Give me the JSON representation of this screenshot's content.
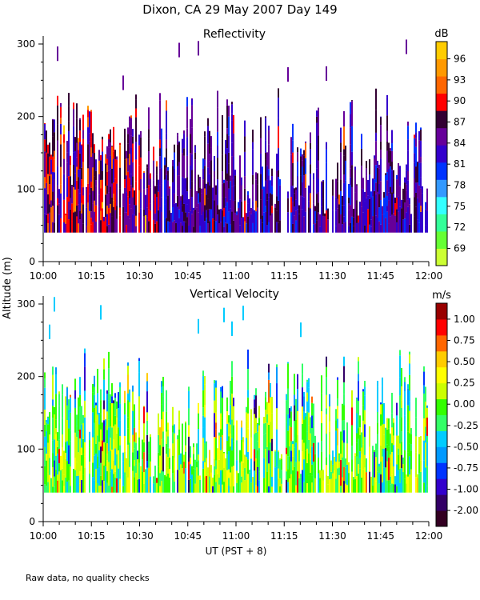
{
  "figure": {
    "title": "Dixon, CA 29 May 2007  Day 149",
    "footnote": "Raw data, no quality checks",
    "ylabel": "Altitude (m)",
    "xlabel": "UT  (PST + 8)"
  },
  "chart_data": [
    {
      "type": "heatmap",
      "title": "Reflectivity",
      "xlabel": "UT  (PST + 8)",
      "ylabel": "Altitude (m)",
      "xlim": [
        0,
        120
      ],
      "ylim": [
        0,
        300
      ],
      "x_ticks": [
        "10:00",
        "10:15",
        "10:30",
        "10:45",
        "11:00",
        "11:15",
        "11:30",
        "11:45",
        "12:00"
      ],
      "y_ticks": [
        0,
        100,
        200,
        300
      ],
      "data_altitude_range": [
        40,
        300
      ],
      "colorbar": {
        "label": "dB",
        "ticks": [
          "96",
          "93",
          "90",
          "87",
          "84",
          "81",
          "78",
          "75",
          "72",
          "69"
        ],
        "colors": [
          "#ccff33",
          "#66ff33",
          "#33ff99",
          "#33ffff",
          "#3399ff",
          "#0033ff",
          "#3300cc",
          "#660099",
          "#330033",
          "#ff0000",
          "#ff6600",
          "#ff9900",
          "#ffcc00"
        ]
      }
    },
    {
      "type": "heatmap",
      "title": "Vertical Velocity",
      "xlabel": "UT  (PST + 8)",
      "ylabel": "Altitude (m)",
      "xlim": [
        0,
        120
      ],
      "ylim": [
        0,
        300
      ],
      "x_ticks": [
        "10:00",
        "10:15",
        "10:30",
        "10:45",
        "11:00",
        "11:15",
        "11:30",
        "11:45",
        "12:00"
      ],
      "y_ticks": [
        0,
        100,
        200,
        300
      ],
      "data_altitude_range": [
        40,
        300
      ],
      "colorbar": {
        "label": "m/s",
        "ticks": [
          "1.00",
          "0.75",
          "0.50",
          "0.25",
          "0.00",
          "-0.25",
          "-0.50",
          "-0.75",
          "-1.00",
          "-2.00"
        ],
        "colors": [
          "#330022",
          "#330066",
          "#3300cc",
          "#0033ff",
          "#0099ff",
          "#00ccff",
          "#33ff66",
          "#33ff00",
          "#ccff00",
          "#ffff00",
          "#ffcc00",
          "#ff6600",
          "#ff0000",
          "#990000"
        ]
      }
    }
  ]
}
